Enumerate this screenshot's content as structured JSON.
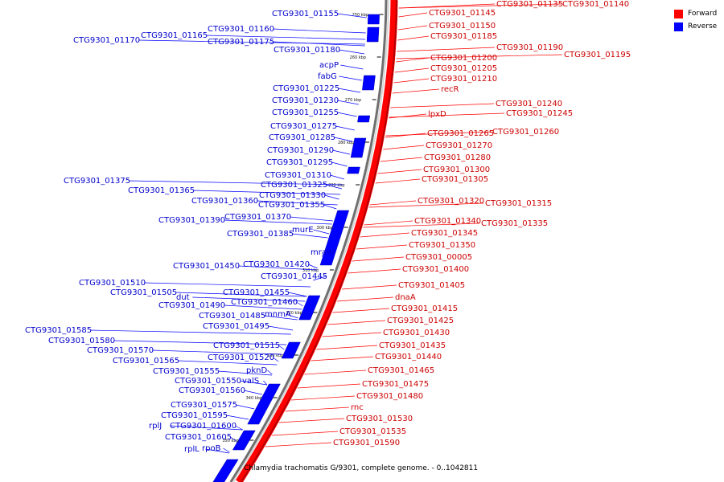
{
  "caption": "Chlamydia trachomatis G/9301, complete genome. - 0..1042811",
  "legend": [
    {
      "label": "Forward",
      "color": "#ff0000"
    },
    {
      "label": "Reverse",
      "color": "#0000ff"
    }
  ],
  "colors": {
    "forward": "#ff0000",
    "reverse": "#0000ff",
    "forward_label": "#cc0000",
    "reverse_label": "#0000cc",
    "ring": "#888888"
  },
  "ticks": [
    "250 kbp",
    "260 kbp",
    "270 kbp",
    "280 kbp",
    "290 kbp",
    "300 kbp",
    "310 kbp",
    "320 kbp",
    "330 kbp",
    "340 kbp",
    "350 kbp"
  ],
  "forward_labels": [
    "CTG9301_01135",
    "CTG9301_01140",
    "CTG9301_01145",
    "CTG9301_01150",
    "CTG9301_01185",
    "CTG9301_01190",
    "CTG9301_01195",
    "CTG9301_01200",
    "CTG9301_01205",
    "CTG9301_01210",
    "recR",
    "CTG9301_01240",
    "lpxD",
    "CTG9301_01245",
    "CTG9301_01265",
    "CTG9301_01260",
    "CTG9301_01270",
    "CTG9301_01280",
    "CTG9301_01300",
    "CTG9301_01305",
    "CTG9301_01320",
    "CTG9301_01315",
    "CTG9301_01340",
    "CTG9301_01335",
    "CTG9301_01345",
    "CTG9301_01350",
    "CTG9301_00005",
    "CTG9301_01400",
    "CTG9301_01405",
    "dnaA",
    "CTG9301_01415",
    "CTG9301_01425",
    "CTG9301_01430",
    "CTG9301_01435",
    "CTG9301_01440",
    "CTG9301_01465",
    "CTG9301_01475",
    "CTG9301_01480",
    "rnc",
    "CTG9301_01530",
    "CTG9301_01535",
    "CTG9301_01590"
  ],
  "reverse_labels": [
    "CTG9301_01155",
    "CTG9301_01160",
    "CTG9301_01165",
    "CTG9301_01170",
    "CTG9301_01175",
    "CTG9301_01180",
    "acpP",
    "fabG",
    "CTG9301_01225",
    "CTG9301_01230",
    "CTG9301_01255",
    "CTG9301_01275",
    "CTG9301_01285",
    "CTG9301_01290",
    "CTG9301_01295",
    "CTG9301_01310",
    "CTG9301_01375",
    "CTG9301_01325",
    "CTG9301_01365",
    "CTG9301_01330",
    "CTG9301_01360",
    "CTG9301_01355",
    "CTG9301_01390",
    "CTG9301_01370",
    "murE",
    "CTG9301_01385",
    "mraW",
    "CTG9301_01450",
    "CTG9301_01420",
    "CTG9301_01445",
    "CTG9301_01510",
    "CTG9301_01505",
    "dut",
    "CTG9301_01455",
    "CTG9301_01490",
    "CTG9301_01460",
    "CTG9301_01485",
    "mnmA",
    "CTG9301_01495",
    "CTG9301_01585",
    "CTG9301_01580",
    "CTG9301_01515",
    "CTG9301_01570",
    "CTG9301_01520",
    "CTG9301_01565",
    "pknD",
    "CTG9301_01555",
    "CTG9301_01550",
    "valS",
    "CTG9301_01560",
    "CTG9301_01575",
    "CTG9301_01595",
    "rplJ",
    "CTG9301_01600",
    "CTG9301_01605",
    "rplL",
    "rpoB"
  ]
}
